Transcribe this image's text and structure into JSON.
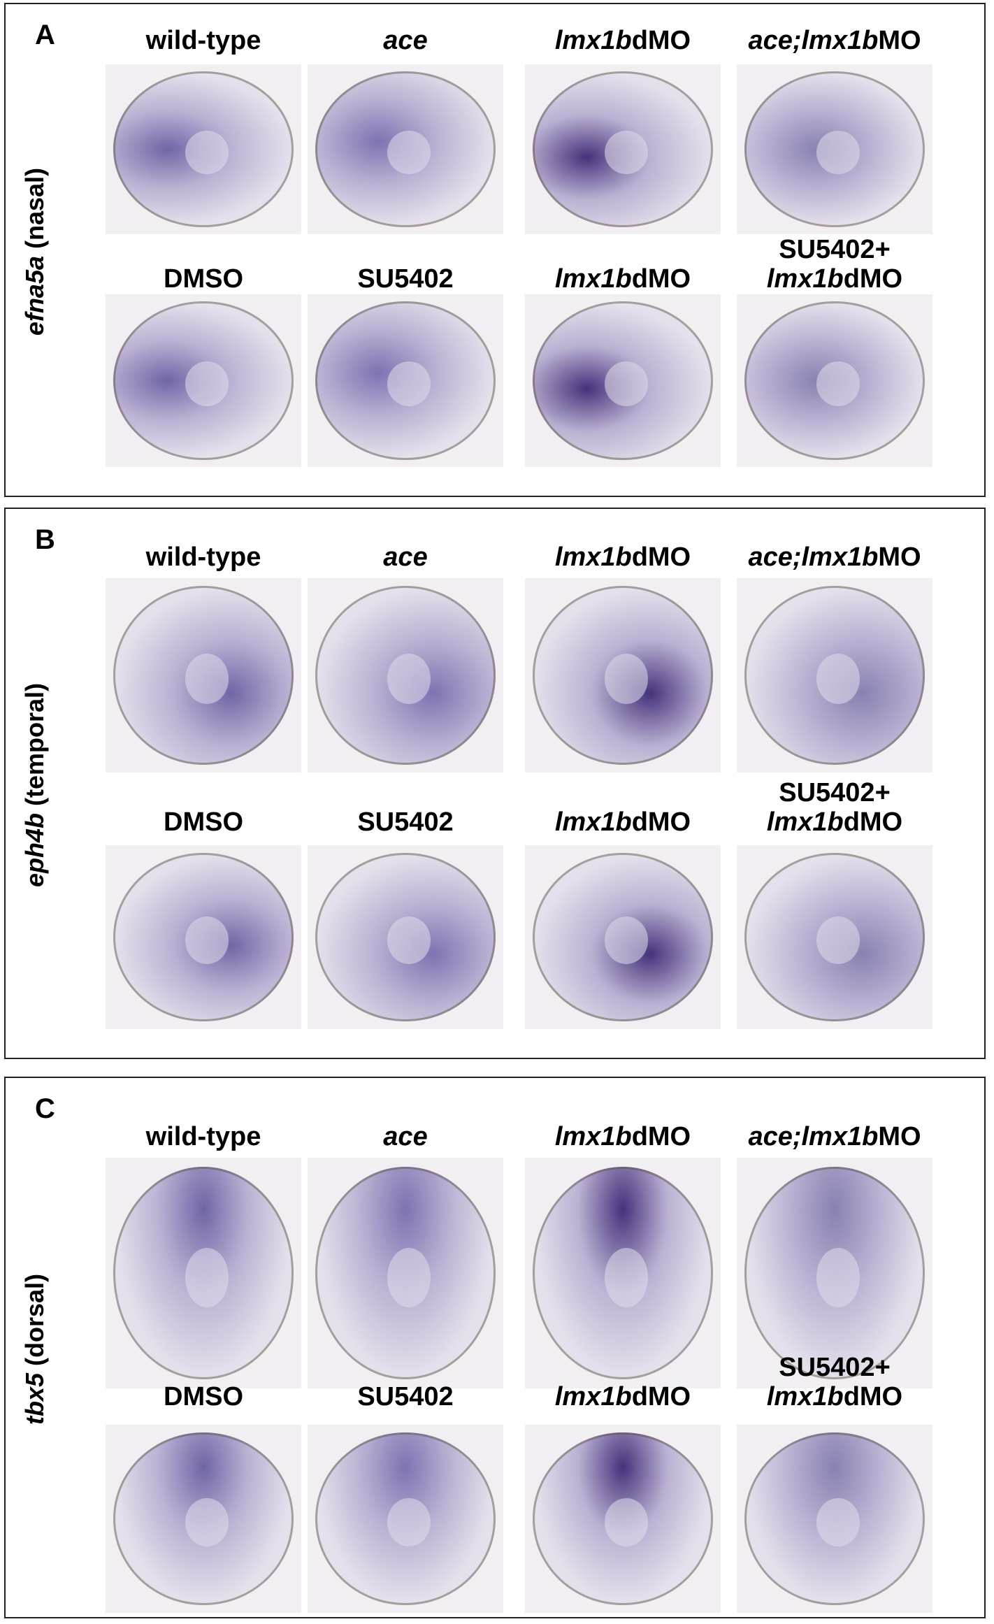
{
  "panels": [
    {
      "letter": "A",
      "side_label": [
        {
          "text": "efna5a",
          "italic": true
        },
        {
          "text": " (nasal)"
        }
      ],
      "rows": [
        [
          [
            [
              {
                "text": "wild-type"
              }
            ]
          ],
          [
            [
              {
                "text": "ace",
                "italic": true
              }
            ]
          ],
          [
            [
              {
                "text": "lmx1b",
                "italic": true
              },
              {
                "text": "dMO"
              }
            ]
          ],
          [
            [
              {
                "text": "ace;lmx1b",
                "italic": true
              },
              {
                "text": "MO"
              }
            ]
          ]
        ],
        [
          [
            [
              {
                "text": "DMSO"
              }
            ]
          ],
          [
            [
              {
                "text": "SU5402"
              }
            ]
          ],
          [
            [
              {
                "text": "lmx1b",
                "italic": true
              },
              {
                "text": "dMO"
              }
            ]
          ],
          [
            [
              {
                "text": "SU5402+"
              }
            ],
            [
              {
                "text": "lmx1b",
                "italic": true
              },
              {
                "text": "dMO"
              }
            ]
          ]
        ]
      ]
    },
    {
      "letter": "B",
      "side_label": [
        {
          "text": "eph4b",
          "italic": true
        },
        {
          "text": " (temporal)"
        }
      ],
      "rows": [
        [
          [
            [
              {
                "text": "wild-type"
              }
            ]
          ],
          [
            [
              {
                "text": "ace",
                "italic": true
              }
            ]
          ],
          [
            [
              {
                "text": "lmx1b",
                "italic": true
              },
              {
                "text": "dMO"
              }
            ]
          ],
          [
            [
              {
                "text": "ace;lmx1b",
                "italic": true
              },
              {
                "text": "MO"
              }
            ]
          ]
        ],
        [
          [
            [
              {
                "text": "DMSO"
              }
            ]
          ],
          [
            [
              {
                "text": "SU5402"
              }
            ]
          ],
          [
            [
              {
                "text": "lmx1b",
                "italic": true
              },
              {
                "text": "dMO"
              }
            ]
          ],
          [
            [
              {
                "text": "SU5402+"
              }
            ],
            [
              {
                "text": "lmx1b",
                "italic": true
              },
              {
                "text": "dMO"
              }
            ]
          ]
        ]
      ]
    },
    {
      "letter": "C",
      "side_label": [
        {
          "text": "tbx5",
          "italic": true
        },
        {
          "text": " (dorsal)"
        }
      ],
      "rows": [
        [
          [
            [
              {
                "text": "wild-type"
              }
            ]
          ],
          [
            [
              {
                "text": "ace",
                "italic": true
              }
            ]
          ],
          [
            [
              {
                "text": "lmx1b",
                "italic": true
              },
              {
                "text": "dMO"
              }
            ]
          ],
          [
            [
              {
                "text": "ace;lmx1b",
                "italic": true
              },
              {
                "text": "MO"
              }
            ]
          ]
        ],
        [
          [
            [
              {
                "text": "DMSO"
              }
            ]
          ],
          [
            [
              {
                "text": "SU5402"
              }
            ]
          ],
          [
            [
              {
                "text": "lmx1b",
                "italic": true
              },
              {
                "text": "dMO"
              }
            ]
          ],
          [
            [
              {
                "text": "SU5402+"
              }
            ],
            [
              {
                "text": "lmx1b",
                "italic": true
              },
              {
                "text": "dMO"
              }
            ]
          ]
        ]
      ]
    }
  ]
}
